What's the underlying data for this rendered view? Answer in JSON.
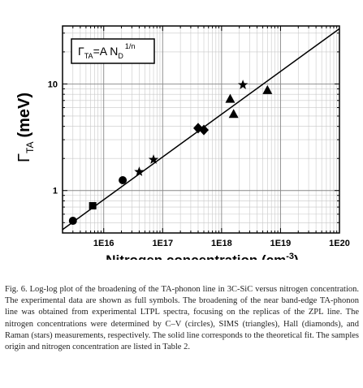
{
  "chart_data": {
    "type": "scatter",
    "x_scale": "log",
    "y_scale": "log",
    "xlim": [
      2000000000000000.0,
      1e+20
    ],
    "ylim": [
      0.4,
      35
    ],
    "grid": true,
    "legend_position": "top-left",
    "ylabel_main": "Γ",
    "ylabel_sub": "TA",
    "ylabel_unit": "(meV)",
    "xlabel_main": "Nitrogen concentration (cm",
    "xlabel_sup": "-3",
    "xlabel_end": ")",
    "formula": {
      "lhs": "Γ",
      "lhs_sub": "TA",
      "mid": "=A N",
      "n_sub": "D",
      "exp": "1/n"
    },
    "x_ticks": [
      {
        "value": 1e+16,
        "label": "1E16"
      },
      {
        "value": 1e+17,
        "label": "1E17"
      },
      {
        "value": 1e+18,
        "label": "1E18"
      },
      {
        "value": 1e+19,
        "label": "1E19"
      },
      {
        "value": 1e+20,
        "label": "1E20"
      }
    ],
    "y_ticks": [
      {
        "value": 1,
        "label": "1"
      },
      {
        "value": 10,
        "label": "10"
      }
    ],
    "fit_line": {
      "x": [
        2000000000000000.0,
        1e+20
      ],
      "y": [
        0.43,
        33
      ]
    },
    "series": [
      {
        "marker": "circle",
        "points": [
          {
            "x": 3000000000000000.0,
            "y": 0.52
          },
          {
            "x": 2.1e+16,
            "y": 1.25
          }
        ]
      },
      {
        "marker": "square",
        "points": [
          {
            "x": 6500000000000000.0,
            "y": 0.72
          }
        ]
      },
      {
        "marker": "diamond",
        "points": [
          {
            "x": 4e+17,
            "y": 3.85
          },
          {
            "x": 5e+17,
            "y": 3.7
          }
        ]
      },
      {
        "marker": "triangle",
        "points": [
          {
            "x": 1.4e+18,
            "y": 7.2
          },
          {
            "x": 1.6e+18,
            "y": 5.2
          },
          {
            "x": 6e+18,
            "y": 8.7
          }
        ]
      },
      {
        "marker": "star",
        "points": [
          {
            "x": 4e+16,
            "y": 1.5
          },
          {
            "x": 7e+16,
            "y": 1.95
          },
          {
            "x": 2.3e+18,
            "y": 9.8
          }
        ]
      }
    ]
  },
  "caption": "Fig. 6. Log-log plot of the broadening of the TA-phonon line in 3C-SiC versus nitrogen concentration. The experimental data are shown as full symbols. The broadening of the near band-edge TA-phonon line was obtained from experimental LTPL spectra, focusing on the replicas of the ZPL line. The nitrogen concentrations were determined by C–V (circles), SIMS (triangles), Hall (diamonds), and Raman (stars) measurements, respectively. The solid line corresponds to the theoretical fit. The samples origin and nitrogen concentration are listed in Table 2."
}
